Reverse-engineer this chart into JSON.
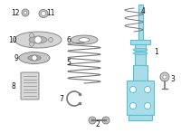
{
  "bg_color": "#ffffff",
  "fig_width": 2.0,
  "fig_height": 1.47,
  "dpi": 100,
  "blue": "#5bbfcf",
  "gray": "#999999",
  "dgray": "#777777",
  "lgray": "#dddddd"
}
